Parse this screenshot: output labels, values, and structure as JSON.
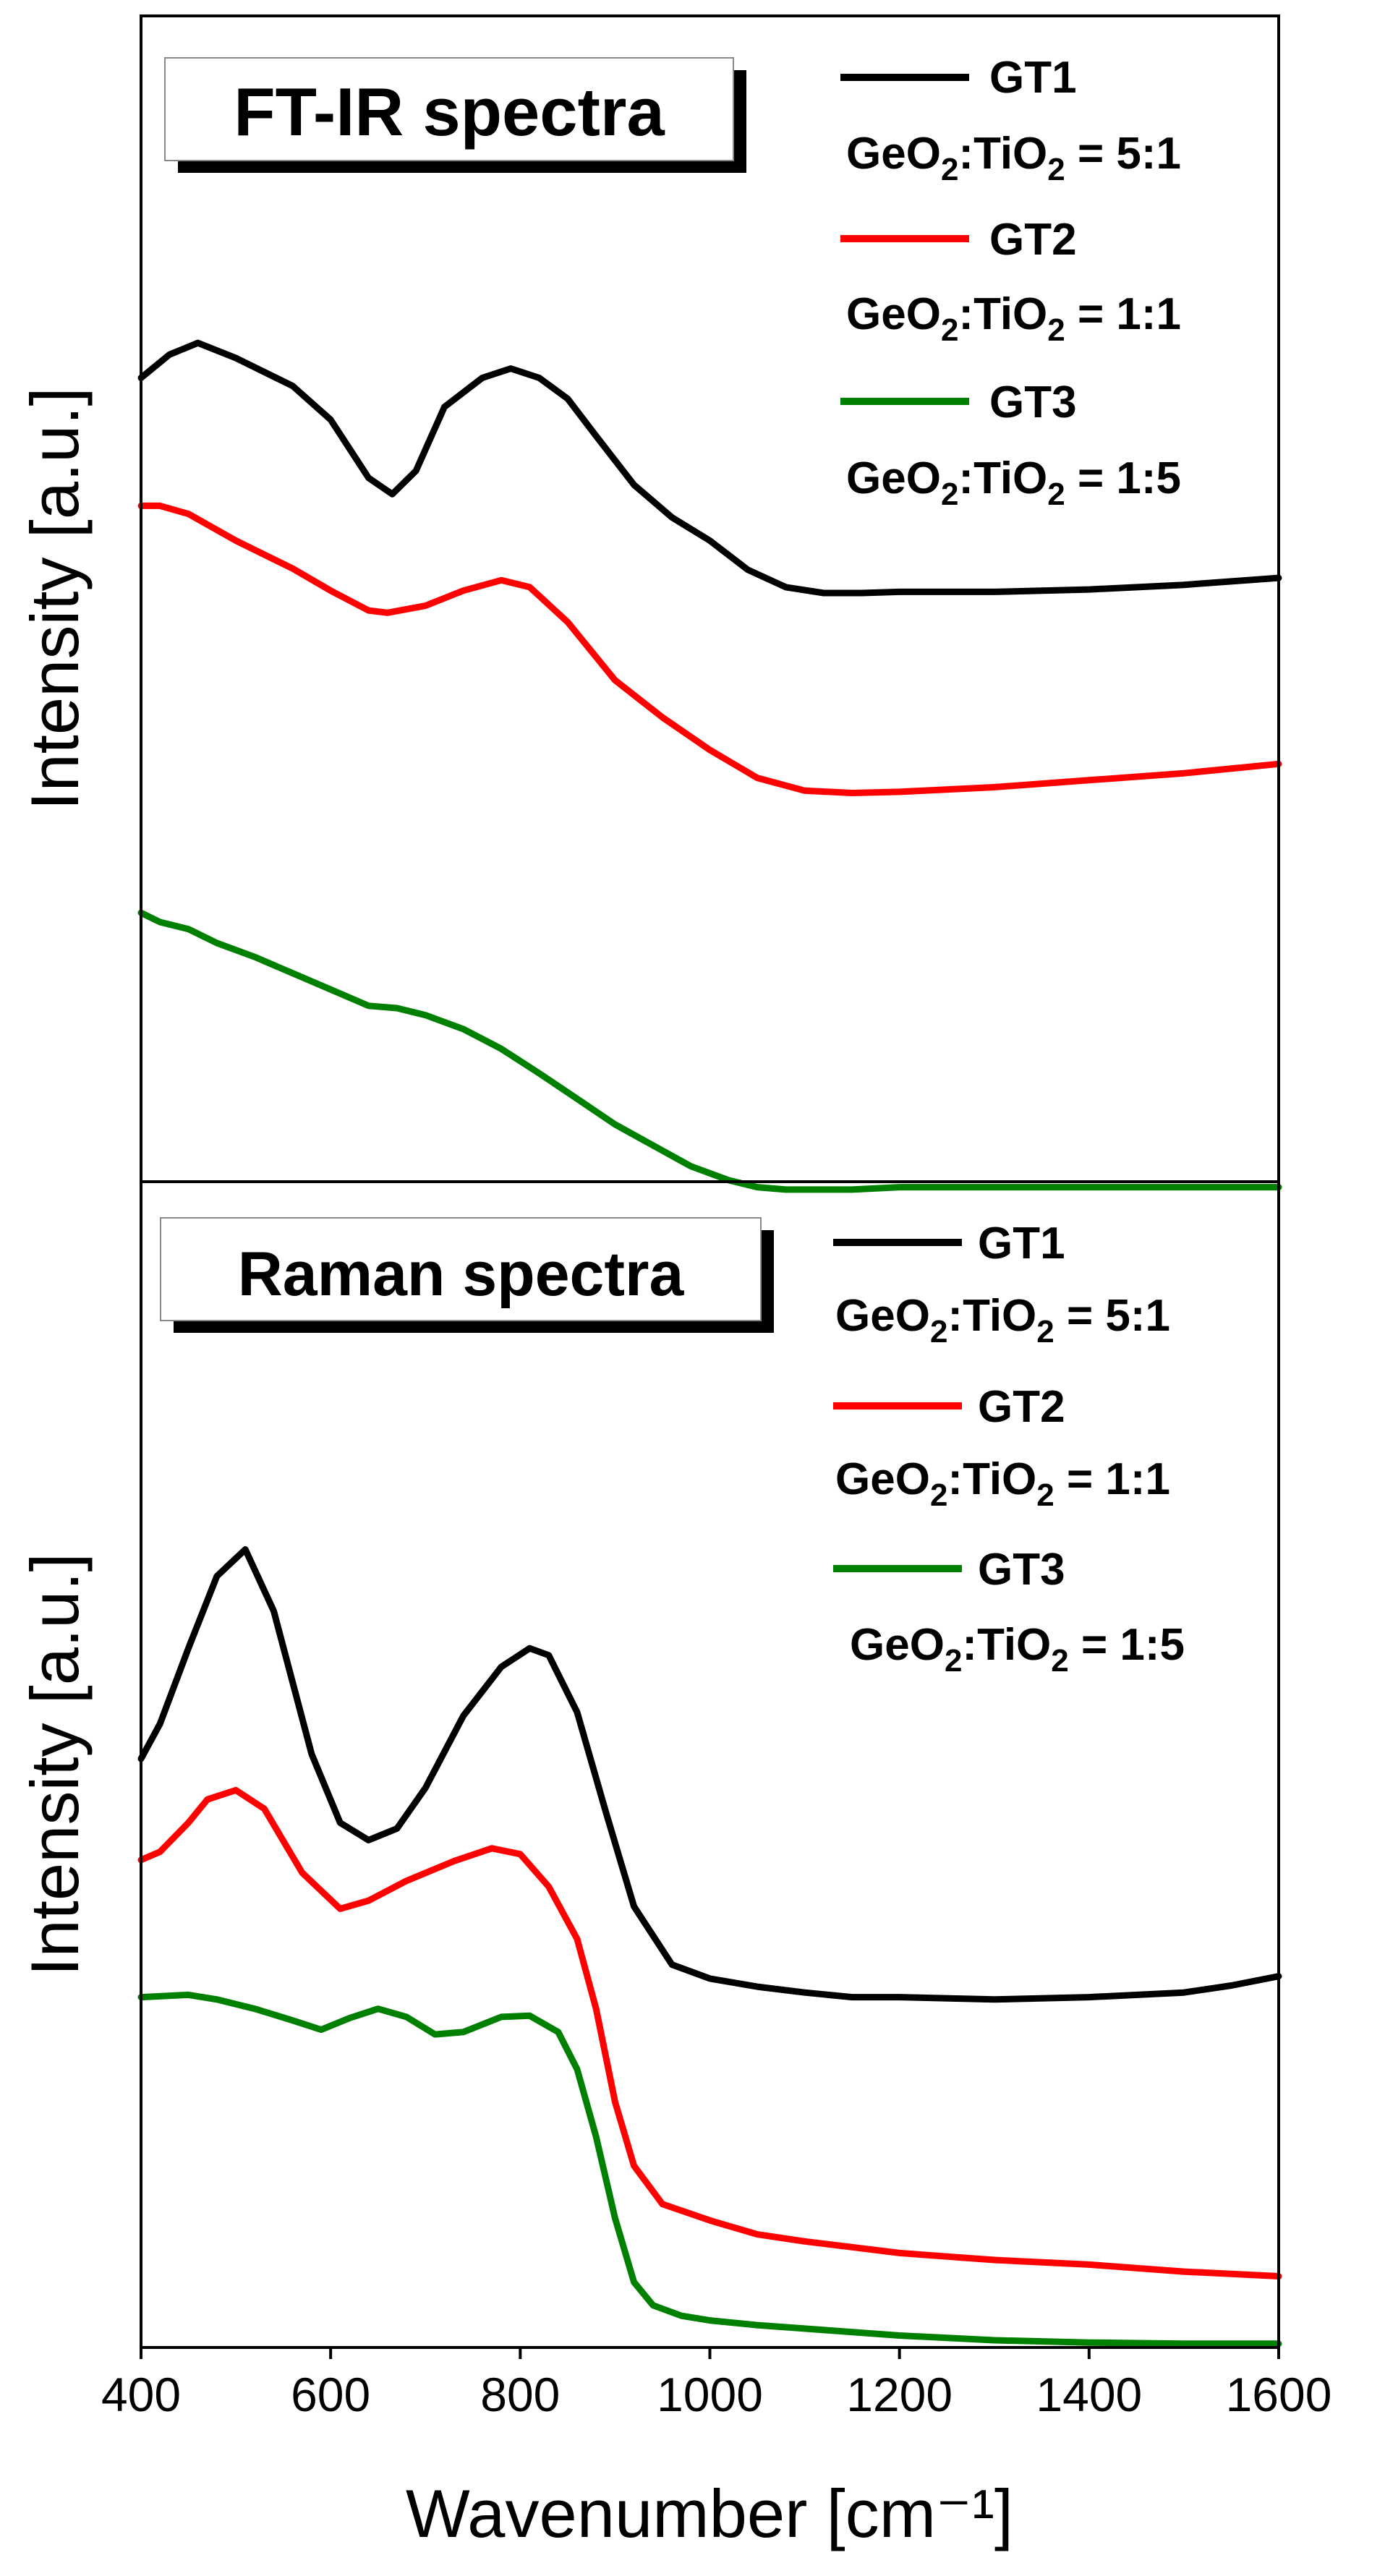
{
  "colors": {
    "GT1": "#000000",
    "GT2": "#ff0000",
    "GT3": "#008000"
  },
  "chart_data": [
    {
      "type": "line",
      "title": "FT-IR spectra",
      "xlabel": "Wavenumber [cm⁻¹]",
      "ylabel": "Intensity [a.u.]",
      "xlim": [
        400,
        1600
      ],
      "ylim": [
        0,
        1
      ],
      "series": [
        {
          "name": "GT1",
          "ratio_label": "GeO2:TiO2 = 5:1",
          "ratio_parts": [
            "GeO",
            "2",
            ":TiO",
            "2",
            " = 5:1"
          ],
          "x": [
            400,
            430,
            460,
            500,
            560,
            600,
            640,
            665,
            690,
            720,
            760,
            790,
            820,
            850,
            880,
            920,
            960,
            1000,
            1040,
            1080,
            1120,
            1160,
            1200,
            1300,
            1400,
            1500,
            1600
          ],
          "y": [
            0.69,
            0.71,
            0.72,
            0.707,
            0.683,
            0.654,
            0.604,
            0.59,
            0.61,
            0.665,
            0.69,
            0.698,
            0.69,
            0.672,
            0.64,
            0.598,
            0.57,
            0.55,
            0.525,
            0.51,
            0.505,
            0.505,
            0.506,
            0.506,
            0.508,
            0.512,
            0.518
          ]
        },
        {
          "name": "GT2",
          "ratio_label": "GeO2:TiO2 = 1:1",
          "ratio_parts": [
            "GeO",
            "2",
            ":TiO",
            "2",
            " = 1:1"
          ],
          "x": [
            400,
            420,
            450,
            500,
            560,
            600,
            640,
            660,
            700,
            740,
            780,
            810,
            850,
            900,
            950,
            1000,
            1050,
            1100,
            1150,
            1200,
            1300,
            1400,
            1500,
            1600
          ],
          "y": [
            0.58,
            0.58,
            0.573,
            0.55,
            0.526,
            0.507,
            0.49,
            0.488,
            0.494,
            0.507,
            0.516,
            0.51,
            0.48,
            0.43,
            0.398,
            0.37,
            0.346,
            0.335,
            0.333,
            0.334,
            0.338,
            0.344,
            0.35,
            0.358
          ]
        },
        {
          "name": "GT3",
          "ratio_label": "GeO2:TiO2 = 1:5",
          "ratio_parts": [
            "GeO",
            "2",
            ":TiO",
            "2",
            " = 1:5"
          ],
          "x": [
            400,
            420,
            450,
            480,
            520,
            560,
            600,
            640,
            670,
            700,
            740,
            780,
            820,
            860,
            900,
            940,
            980,
            1020,
            1050,
            1080,
            1100,
            1150,
            1200,
            1300,
            1400,
            1500,
            1600
          ],
          "y": [
            0.23,
            0.222,
            0.216,
            0.204,
            0.192,
            0.178,
            0.164,
            0.15,
            0.148,
            0.142,
            0.13,
            0.113,
            0.092,
            0.07,
            0.048,
            0.03,
            0.012,
            0.0,
            -0.006,
            -0.008,
            -0.008,
            -0.008,
            -0.006,
            -0.006,
            -0.006,
            -0.006,
            -0.006
          ]
        }
      ]
    },
    {
      "type": "line",
      "title": "Raman spectra",
      "xlabel": "Wavenumber [cm⁻¹]",
      "ylabel": "Intensity [a.u.]",
      "xlim": [
        400,
        1600
      ],
      "ylim": [
        0,
        1
      ],
      "xticks": [
        400,
        600,
        800,
        1000,
        1200,
        1400,
        1600
      ],
      "series": [
        {
          "name": "GT1",
          "ratio_label": "GeO2:TiO2 = 5:1",
          "ratio_parts": [
            "GeO",
            "2",
            ":TiO",
            "2",
            " = 5:1"
          ],
          "x": [
            400,
            420,
            450,
            480,
            510,
            540,
            580,
            610,
            640,
            670,
            700,
            740,
            780,
            810,
            830,
            860,
            890,
            920,
            960,
            1000,
            1050,
            1100,
            1150,
            1200,
            1300,
            1400,
            1500,
            1550,
            1600
          ],
          "y": [
            0.505,
            0.535,
            0.6,
            0.662,
            0.685,
            0.632,
            0.509,
            0.45,
            0.435,
            0.445,
            0.48,
            0.542,
            0.584,
            0.6,
            0.594,
            0.545,
            0.46,
            0.378,
            0.328,
            0.316,
            0.309,
            0.304,
            0.3,
            0.3,
            0.298,
            0.3,
            0.304,
            0.31,
            0.318
          ]
        },
        {
          "name": "GT2",
          "ratio_label": "GeO2:TiO2 = 1:1",
          "ratio_parts": [
            "GeO",
            "2",
            ":TiO",
            "2",
            " = 1:1"
          ],
          "x": [
            400,
            420,
            450,
            470,
            500,
            530,
            570,
            610,
            640,
            680,
            730,
            770,
            800,
            830,
            860,
            880,
            900,
            920,
            950,
            1000,
            1050,
            1100,
            1150,
            1200,
            1300,
            1400,
            1500,
            1600
          ],
          "y": [
            0.418,
            0.425,
            0.45,
            0.47,
            0.478,
            0.462,
            0.407,
            0.376,
            0.383,
            0.4,
            0.417,
            0.428,
            0.423,
            0.395,
            0.35,
            0.29,
            0.21,
            0.155,
            0.122,
            0.108,
            0.096,
            0.09,
            0.085,
            0.08,
            0.074,
            0.07,
            0.064,
            0.06
          ]
        },
        {
          "name": "GT3",
          "ratio_label": "GeO2:TiO2 = 1:5",
          "ratio_parts": [
            "GeO",
            "2",
            ":TiO",
            "2",
            " = 1:5"
          ],
          "x": [
            400,
            450,
            480,
            520,
            560,
            590,
            620,
            650,
            680,
            710,
            740,
            780,
            810,
            840,
            860,
            880,
            900,
            920,
            940,
            970,
            1000,
            1050,
            1100,
            1200,
            1300,
            1400,
            1500,
            1600
          ],
          "y": [
            0.3,
            0.302,
            0.298,
            0.29,
            0.28,
            0.272,
            0.282,
            0.29,
            0.283,
            0.268,
            0.27,
            0.283,
            0.284,
            0.27,
            0.238,
            0.18,
            0.11,
            0.055,
            0.035,
            0.026,
            0.022,
            0.018,
            0.015,
            0.009,
            0.005,
            0.003,
            0.002,
            0.002
          ]
        }
      ]
    }
  ]
}
